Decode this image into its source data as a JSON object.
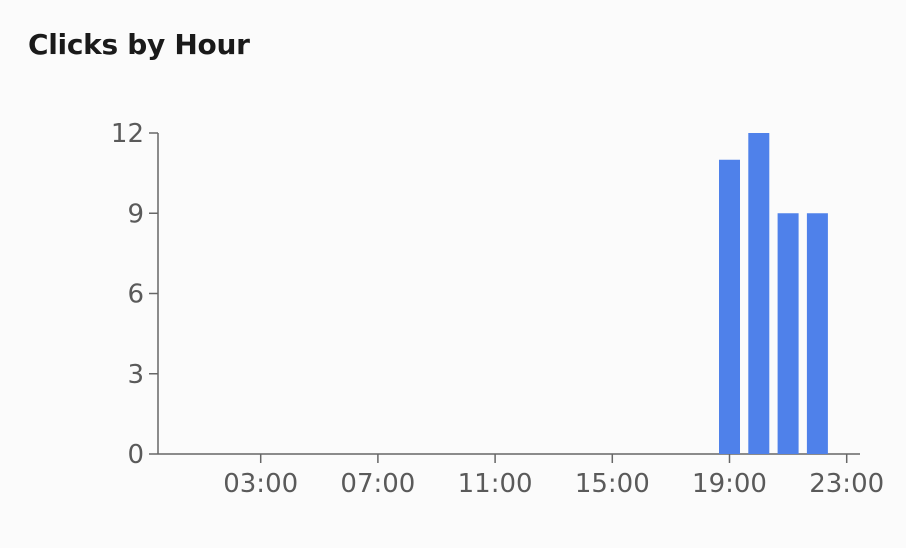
{
  "card": {
    "title": "Clicks by Hour"
  },
  "chart_data": {
    "type": "bar",
    "title": "Clicks by Hour",
    "xlabel": "",
    "ylabel": "",
    "x_ticks": [
      "03:00",
      "07:00",
      "11:00",
      "15:00",
      "19:00",
      "23:00"
    ],
    "y_ticks": [
      0,
      3,
      6,
      9,
      12
    ],
    "ylim": [
      0,
      12
    ],
    "categories": [
      "00:00",
      "01:00",
      "02:00",
      "03:00",
      "04:00",
      "05:00",
      "06:00",
      "07:00",
      "08:00",
      "09:00",
      "10:00",
      "11:00",
      "12:00",
      "13:00",
      "14:00",
      "15:00",
      "16:00",
      "17:00",
      "18:00",
      "19:00",
      "20:00",
      "21:00",
      "22:00",
      "23:00"
    ],
    "values": [
      0,
      0,
      0,
      0,
      0,
      0,
      0,
      0,
      0,
      0,
      0,
      0,
      0,
      0,
      0,
      0,
      0,
      0,
      0,
      11,
      12,
      9,
      9,
      0
    ],
    "bar_color": "#4f81ea",
    "axis_color": "#666666",
    "grid": false
  }
}
